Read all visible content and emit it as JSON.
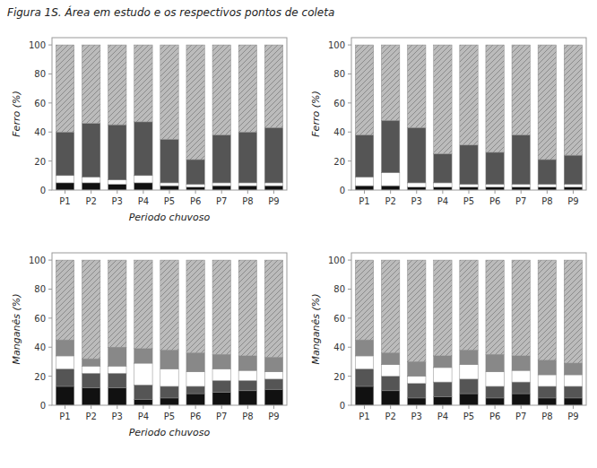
{
  "title": "Figura 1S. Área em estudo e os respectivos pontos de coleta",
  "chart_data": [
    {
      "type": "bar",
      "stacked": true,
      "grid": false,
      "xlabel": "Periodo chuvoso",
      "ylabel": "Ferro (%)",
      "categories": [
        "P1",
        "P2",
        "P3",
        "P4",
        "P5",
        "P6",
        "P7",
        "P8",
        "P9"
      ],
      "ylim": [
        0,
        105
      ],
      "yticks": [
        0,
        20,
        40,
        60,
        80,
        100
      ],
      "series": [
        {
          "color": "#111111",
          "values": [
            5,
            5,
            4,
            5,
            3,
            2,
            3,
            3,
            3
          ]
        },
        {
          "color": "#ffffff",
          "values": [
            5,
            4,
            3,
            5,
            2,
            2,
            2,
            2,
            2
          ]
        },
        {
          "color": "#555555",
          "values": [
            30,
            37,
            38,
            37,
            30,
            17,
            33,
            35,
            38
          ]
        },
        {
          "color": "#bbbbbb",
          "values": [
            60,
            54,
            55,
            53,
            65,
            79,
            62,
            60,
            57
          ]
        }
      ]
    },
    {
      "type": "bar",
      "stacked": true,
      "grid": false,
      "ylabel": "Ferro (%)",
      "categories": [
        "P1",
        "P2",
        "P3",
        "P4",
        "P5",
        "P6",
        "P7",
        "P8",
        "P9"
      ],
      "ylim": [
        0,
        105
      ],
      "yticks": [
        0,
        20,
        40,
        60,
        80,
        100
      ],
      "series": [
        {
          "color": "#111111",
          "values": [
            3,
            3,
            2,
            2,
            2,
            2,
            2,
            2,
            2
          ]
        },
        {
          "color": "#ffffff",
          "values": [
            6,
            9,
            3,
            3,
            2,
            2,
            2,
            2,
            2
          ]
        },
        {
          "color": "#555555",
          "values": [
            29,
            36,
            38,
            20,
            27,
            22,
            34,
            17,
            20
          ]
        },
        {
          "color": "#bbbbbb",
          "values": [
            62,
            52,
            57,
            75,
            69,
            74,
            62,
            79,
            76
          ]
        }
      ]
    },
    {
      "type": "bar",
      "stacked": true,
      "grid": false,
      "xlabel": "Periodo chuvoso",
      "ylabel": "Manganês (%)",
      "categories": [
        "P1",
        "P2",
        "P3",
        "P4",
        "P5",
        "P6",
        "P7",
        "P8",
        "P9"
      ],
      "ylim": [
        0,
        105
      ],
      "yticks": [
        0,
        20,
        40,
        60,
        80,
        100
      ],
      "series": [
        {
          "color": "#111111",
          "values": [
            13,
            12,
            12,
            4,
            5,
            8,
            9,
            10,
            11
          ]
        },
        {
          "color": "#555555",
          "values": [
            12,
            10,
            10,
            10,
            8,
            5,
            8,
            7,
            7
          ]
        },
        {
          "color": "#ffffff",
          "values": [
            9,
            5,
            5,
            15,
            12,
            10,
            8,
            7,
            5
          ]
        },
        {
          "color": "#888888",
          "values": [
            11,
            5,
            13,
            10,
            13,
            13,
            10,
            10,
            10
          ]
        },
        {
          "color": "#bbbbbb",
          "values": [
            55,
            68,
            60,
            61,
            62,
            64,
            65,
            66,
            67
          ]
        }
      ]
    },
    {
      "type": "bar",
      "stacked": true,
      "grid": false,
      "ylabel": "Manganês (%)",
      "categories": [
        "P1",
        "P2",
        "P3",
        "P4",
        "P5",
        "P6",
        "P7",
        "P8",
        "P9"
      ],
      "ylim": [
        0,
        105
      ],
      "yticks": [
        0,
        20,
        40,
        60,
        80,
        100
      ],
      "series": [
        {
          "color": "#111111",
          "values": [
            13,
            10,
            5,
            6,
            8,
            5,
            8,
            5,
            5
          ]
        },
        {
          "color": "#555555",
          "values": [
            12,
            10,
            10,
            10,
            10,
            8,
            8,
            8,
            8
          ]
        },
        {
          "color": "#ffffff",
          "values": [
            9,
            8,
            5,
            10,
            10,
            10,
            8,
            8,
            8
          ]
        },
        {
          "color": "#888888",
          "values": [
            11,
            8,
            10,
            8,
            10,
            12,
            10,
            10,
            8
          ]
        },
        {
          "color": "#bbbbbb",
          "values": [
            55,
            64,
            70,
            66,
            62,
            65,
            66,
            69,
            71
          ]
        }
      ]
    }
  ]
}
